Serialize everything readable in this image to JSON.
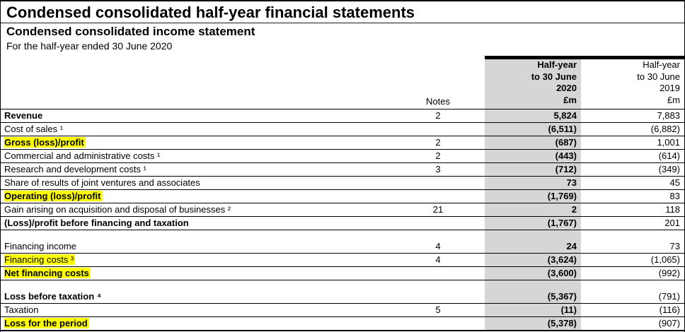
{
  "document": {
    "title": "Condensed consolidated half-year financial statements",
    "subtitle": "Condensed consolidated income statement",
    "period_line": "For the half-year ended 30 June 2020"
  },
  "table": {
    "notes_header": "Notes",
    "highlight_color": "#ffff00",
    "shade_color": "#d6d6d6",
    "columns": [
      {
        "key": "v2020",
        "lines": [
          "Half-year",
          "to 30 June",
          "2020",
          "£m"
        ],
        "bold": true
      },
      {
        "key": "v2019",
        "lines": [
          "Half-year",
          "to 30 June",
          "2019",
          "£m"
        ],
        "bold": false
      }
    ],
    "rows": [
      {
        "label": "Revenue",
        "notes": "2",
        "v2020": "5,824",
        "v2019": "7,883",
        "bold_label": true
      },
      {
        "label": "Cost of sales ¹",
        "notes": "",
        "v2020": "(6,511)",
        "v2019": "(6,882)"
      },
      {
        "label": "Gross (loss)/profit",
        "notes": "2",
        "v2020": "(687)",
        "v2019": "1,001",
        "bold_label": true,
        "highlight": true
      },
      {
        "label": "Commercial and administrative costs ¹",
        "notes": "2",
        "v2020": "(443)",
        "v2019": "(614)"
      },
      {
        "label": "Research and development costs ¹",
        "notes": "3",
        "v2020": "(712)",
        "v2019": "(349)"
      },
      {
        "label": "Share of results of joint ventures and associates",
        "notes": "",
        "v2020": "73",
        "v2019": "45"
      },
      {
        "label": "Operating (loss)/profit",
        "notes": "",
        "v2020": "(1,769)",
        "v2019": "83",
        "bold_label": true,
        "highlight": true
      },
      {
        "label": "Gain arising on acquisition and disposal of businesses ²",
        "notes": "21",
        "v2020": "2",
        "v2019": "118"
      },
      {
        "label": "(Loss)/profit before financing and taxation",
        "notes": "",
        "v2020": "(1,767)",
        "v2019": "201",
        "bold_label": true
      },
      {
        "spacer": true
      },
      {
        "label": "Financing income",
        "notes": "4",
        "v2020": "24",
        "v2019": "73"
      },
      {
        "label": "Financing costs ³",
        "notes": "4",
        "v2020": "(3,624)",
        "v2019": "(1,065)",
        "highlight": true
      },
      {
        "label": "Net financing costs",
        "notes": "",
        "v2020": "(3,600)",
        "v2019": "(992)",
        "bold_label": true,
        "highlight": true
      },
      {
        "spacer": true
      },
      {
        "label": "Loss before taxation ⁴",
        "notes": "",
        "v2020": "(5,367)",
        "v2019": "(791)",
        "bold_label": true
      },
      {
        "label": "Taxation",
        "notes": "5",
        "v2020": "(11)",
        "v2019": "(116)"
      },
      {
        "label": "Loss for the period",
        "notes": "",
        "v2020": "(5,378)",
        "v2019": "(907)",
        "bold_label": true,
        "highlight": true,
        "last": true
      }
    ]
  }
}
